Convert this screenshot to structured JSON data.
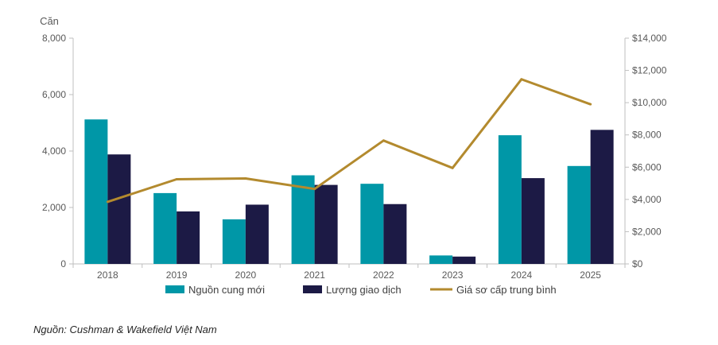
{
  "chart_data": {
    "type": "bar",
    "y_unit_label": "Căn",
    "categories": [
      "2018",
      "2019",
      "2020",
      "2021",
      "2022",
      "2023",
      "2024",
      "2025"
    ],
    "series": [
      {
        "name": "Nguồn cung mới",
        "type": "bar",
        "axis": "left",
        "color": "#0097A7",
        "values": [
          5120,
          2510,
          1580,
          3140,
          2840,
          300,
          4560,
          3470
        ]
      },
      {
        "name": "Lượng giao dịch",
        "type": "bar",
        "axis": "left",
        "color": "#1C1A45",
        "values": [
          3880,
          1860,
          2100,
          2800,
          2120,
          260,
          3040,
          4750
        ]
      },
      {
        "name": "Giá sơ cấp trung bình",
        "type": "line",
        "axis": "right",
        "color": "#B38A2E",
        "values": [
          3850,
          5250,
          5300,
          4650,
          7650,
          5950,
          11450,
          9900
        ]
      }
    ],
    "y_left": {
      "min": 0,
      "max": 8000,
      "ticks": [
        0,
        2000,
        4000,
        6000,
        8000
      ],
      "tick_labels": [
        "0",
        "2,000",
        "4,000",
        "6,000",
        "8,000"
      ]
    },
    "y_right": {
      "min": 0,
      "max": 14000,
      "ticks": [
        0,
        2000,
        4000,
        6000,
        8000,
        10000,
        12000,
        14000
      ],
      "tick_labels": [
        "$0",
        "$2,000",
        "$4,000",
        "$6,000",
        "$8,000",
        "$10,000",
        "$12,000",
        "$14,000"
      ]
    },
    "grid": false,
    "legend_position": "bottom"
  },
  "source_note": "Nguồn: Cushman & Wakefield Việt Nam"
}
